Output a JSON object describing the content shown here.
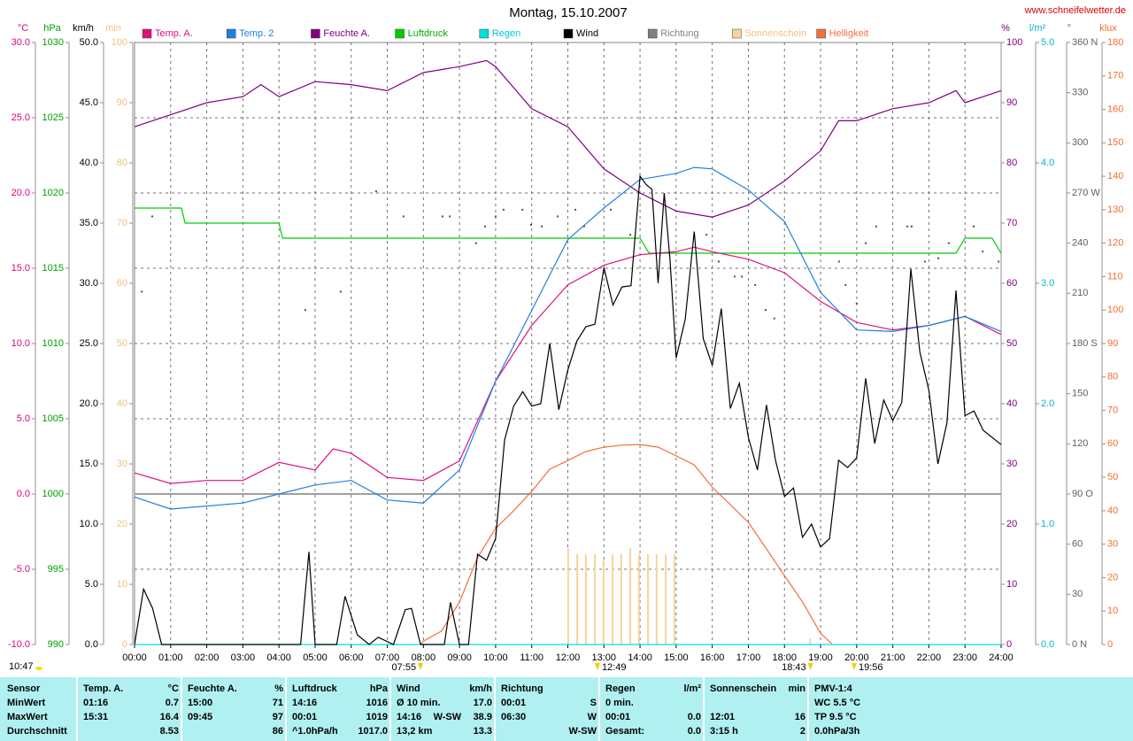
{
  "chart_data": [
    {
      "type": "line",
      "title": "Montag, 15.10.2007",
      "source": "www.schneifelwetter.de",
      "timestamp": "10:47",
      "ylabel": "°C",
      "grid": true,
      "xlim": [
        0,
        24
      ],
      "xticks": [
        {
          "value": 0,
          "label": "00:00"
        },
        {
          "value": 1,
          "label": "01:00"
        },
        {
          "value": 2,
          "label": "02:00"
        },
        {
          "value": 3,
          "label": "03:00"
        },
        {
          "value": 4,
          "label": "04:00"
        },
        {
          "value": 5,
          "label": "05:00"
        },
        {
          "value": 6,
          "label": "06:00"
        },
        {
          "value": 7,
          "label": "07:00"
        },
        {
          "value": 8,
          "label": "08:00"
        },
        {
          "value": 9,
          "label": "09:00"
        },
        {
          "value": 10,
          "label": "10:00"
        },
        {
          "value": 11,
          "label": "11:00"
        },
        {
          "value": 12,
          "label": "12:00"
        },
        {
          "value": 13,
          "label": "13:00"
        },
        {
          "value": 14,
          "label": "14:00"
        },
        {
          "value": 15,
          "label": "15:00"
        },
        {
          "value": 16,
          "label": "16:00"
        },
        {
          "value": 17,
          "label": "17:00"
        },
        {
          "value": 18,
          "label": "18:00"
        },
        {
          "value": 19,
          "label": "19:00"
        },
        {
          "value": 20,
          "label": "20:00"
        },
        {
          "value": 21,
          "label": "21:00"
        },
        {
          "value": 22,
          "label": "22:00"
        },
        {
          "value": 23,
          "label": "23:00"
        },
        {
          "value": 24,
          "label": "24:00"
        }
      ],
      "ylim": [
        -10,
        30
      ],
      "yticks": [
        {
          "value": -10,
          "label": "-10.0"
        },
        {
          "value": -5,
          "label": "-5.0"
        },
        {
          "value": 0,
          "label": "0.0"
        },
        {
          "value": 5,
          "label": "5.0"
        },
        {
          "value": 10,
          "label": "10.0"
        },
        {
          "value": 15,
          "label": "15.0"
        },
        {
          "value": 20,
          "label": "20.0"
        },
        {
          "value": 25,
          "label": "25.0"
        },
        {
          "value": 30,
          "label": "30.0"
        }
      ],
      "annotations": [
        {
          "text": "07:55",
          "x": 7.92
        },
        {
          "text": "12:49",
          "x": 12.82
        },
        {
          "text": "18:43",
          "x": 18.72
        },
        {
          "text": "19:56",
          "x": 19.93
        }
      ],
      "x": [
        0,
        1,
        2,
        3,
        4,
        5,
        5.5,
        6,
        7,
        8,
        9,
        10,
        11,
        12,
        13,
        14,
        15,
        15.5,
        16,
        17,
        18,
        19,
        20,
        21,
        22,
        23,
        24
      ],
      "series": [
        {
          "name": "Temp. A.",
          "color": "#e0107f",
          "values": [
            1.4,
            0.7,
            0.9,
            0.9,
            2.1,
            1.6,
            3.0,
            2.7,
            1.1,
            0.9,
            2.2,
            7.5,
            11.2,
            13.9,
            15.2,
            15.9,
            16.1,
            16.4,
            16.1,
            15.6,
            14.7,
            12.8,
            11.4,
            10.9,
            11.2,
            11.8,
            10.6
          ]
        },
        {
          "name": "Temp. 2",
          "color": "#2080e0",
          "x": [
            0,
            1,
            2,
            3,
            4,
            5,
            6,
            7,
            8,
            9,
            10,
            11,
            12,
            13,
            14,
            15,
            15.5,
            16,
            17,
            18,
            19,
            20,
            21,
            22,
            23,
            24
          ],
          "values": [
            -0.2,
            -1.0,
            -0.8,
            -0.6,
            0.0,
            0.6,
            0.9,
            -0.4,
            -0.6,
            1.6,
            7.5,
            12.2,
            16.9,
            19.0,
            20.9,
            21.3,
            21.7,
            21.6,
            20.2,
            18.1,
            13.4,
            10.9,
            10.8,
            11.2,
            11.8,
            10.8
          ]
        }
      ]
    },
    {
      "type": "line",
      "ylabel": "%",
      "xlim": [
        0,
        24
      ],
      "ylim": [
        0,
        100
      ],
      "yticks": [
        0,
        10,
        20,
        30,
        40,
        50,
        60,
        70,
        80,
        90,
        100
      ],
      "x": [
        0,
        1,
        2,
        3,
        3.5,
        4,
        5,
        6,
        7,
        8,
        9,
        9.75,
        10,
        11,
        12,
        13,
        14,
        15,
        16,
        17,
        18,
        19,
        19.5,
        20,
        21,
        22,
        22.75,
        23,
        24
      ],
      "series": [
        {
          "name": "Feuchte A.",
          "color": "#800080",
          "values": [
            86,
            88,
            90,
            91,
            93,
            91,
            93.5,
            93,
            92,
            95,
            96,
            97,
            96,
            89,
            86,
            79,
            75,
            72,
            71,
            73,
            77,
            82,
            87,
            87,
            89,
            90,
            92,
            90,
            92
          ]
        }
      ]
    },
    {
      "type": "line",
      "ylabel": "hPa",
      "xlim": [
        0,
        24
      ],
      "ylim": [
        990,
        1030
      ],
      "yticks": [
        990,
        995,
        1000,
        1005,
        1010,
        1015,
        1020,
        1025,
        1030
      ],
      "x": [
        0,
        1.3,
        1.4,
        4.0,
        4.1,
        14.0,
        14.25,
        22.75,
        23.0,
        23.75,
        24
      ],
      "series": [
        {
          "name": "Luftdruck",
          "color": "#00cc00",
          "values": [
            1019,
            1019,
            1018,
            1018,
            1017,
            1017,
            1016,
            1016,
            1017,
            1017,
            1016
          ]
        }
      ]
    },
    {
      "type": "line",
      "ylabel": "l/m²",
      "xlim": [
        0,
        24
      ],
      "ylim": [
        0,
        5
      ],
      "yticks": [
        {
          "value": 0,
          "label": "0.0"
        },
        {
          "value": 1,
          "label": "1.0"
        },
        {
          "value": 2,
          "label": "2.0"
        },
        {
          "value": 3,
          "label": "3.0"
        },
        {
          "value": 4,
          "label": "4.0"
        },
        {
          "value": 5,
          "label": "5.0"
        }
      ],
      "x": [
        0,
        24
      ],
      "series": [
        {
          "name": "Regen",
          "color": "#00e0e0",
          "values": [
            0,
            0
          ]
        }
      ]
    },
    {
      "type": "line",
      "ylabel": "km/h",
      "xlim": [
        0,
        24
      ],
      "ylim": [
        0,
        50
      ],
      "yticks": [
        {
          "value": 0,
          "label": "0.0"
        },
        {
          "value": 5,
          "label": "5.0"
        },
        {
          "value": 10,
          "label": "10.0"
        },
        {
          "value": 15,
          "label": "15.0"
        },
        {
          "value": 20,
          "label": "20.0"
        },
        {
          "value": 25,
          "label": "25.0"
        },
        {
          "value": 30,
          "label": "30.0"
        },
        {
          "value": 35,
          "label": "35.0"
        },
        {
          "value": 40,
          "label": "40.0"
        },
        {
          "value": 45,
          "label": "45.0"
        },
        {
          "value": 50,
          "label": "50.0"
        }
      ],
      "x": [
        0,
        0.25,
        0.5,
        0.75,
        4.6,
        4.83,
        5.0,
        5.6,
        5.83,
        6.17,
        6.5,
        6.75,
        7.17,
        7.5,
        7.67,
        7.92,
        8.25,
        8.58,
        8.75,
        9.0,
        9.25,
        9.5,
        9.75,
        10.0,
        10.25,
        10.5,
        10.75,
        11.0,
        11.25,
        11.5,
        11.75,
        12.0,
        12.25,
        12.5,
        12.75,
        13.0,
        13.25,
        13.5,
        13.75,
        14.0,
        14.17,
        14.33,
        14.5,
        14.67,
        14.83,
        15.0,
        15.25,
        15.5,
        15.75,
        16.0,
        16.25,
        16.5,
        16.75,
        17.0,
        17.25,
        17.5,
        17.75,
        18.0,
        18.25,
        18.5,
        18.75,
        19.0,
        19.25,
        19.5,
        19.75,
        20.0,
        20.25,
        20.5,
        20.75,
        21.0,
        21.25,
        21.5,
        21.75,
        22.0,
        22.25,
        22.5,
        22.75,
        23.0,
        23.25,
        23.5,
        24.0
      ],
      "series": [
        {
          "name": "Wind",
          "color": "#000000",
          "values": [
            0,
            4.6,
            3.0,
            0,
            0,
            7.7,
            0,
            0,
            4.0,
            0.8,
            0,
            0.6,
            0,
            2.9,
            3.0,
            0,
            0,
            0,
            3.5,
            0,
            0,
            7.5,
            7.0,
            8.8,
            17.0,
            19.8,
            21.0,
            19.8,
            20.0,
            25.0,
            19.5,
            22.8,
            25.2,
            26.4,
            26.6,
            31.3,
            28.2,
            29.7,
            29.8,
            38.9,
            38.2,
            37.8,
            30.0,
            37.5,
            32.0,
            23.8,
            27.0,
            34.3,
            25.4,
            23.2,
            27.9,
            19.6,
            21.7,
            17.2,
            14.5,
            19.9,
            15.3,
            12.3,
            13.0,
            8.9,
            10.0,
            8.1,
            8.8,
            15.3,
            14.7,
            15.5,
            22.1,
            16.7,
            20.3,
            18.6,
            20.1,
            31.2,
            24.3,
            21.1,
            15.0,
            18.4,
            29.4,
            19.0,
            19.4,
            17.8,
            16.6
          ]
        }
      ]
    },
    {
      "type": "scatter",
      "ylabel": "°",
      "xlim": [
        0,
        24
      ],
      "ylim": [
        0,
        360
      ],
      "yticks": [
        {
          "value": 0,
          "label": "0 N"
        },
        30,
        60,
        {
          "value": 90,
          "label": "90 O"
        },
        120,
        150,
        {
          "value": 180,
          "label": "180 S"
        },
        210,
        240,
        {
          "value": 270,
          "label": "270 W"
        },
        300,
        330,
        {
          "value": 360,
          "label": "360 N"
        }
      ],
      "x": [
        0.2,
        0.49,
        4.73,
        5.71,
        6.69,
        7.45,
        8.53,
        8.73,
        9.46,
        9.71,
        10.0,
        10.22,
        10.74,
        10.98,
        11.28,
        11.72,
        12.21,
        12.45,
        13.19,
        13.73,
        15.84,
        16.18,
        16.62,
        16.82,
        17.19,
        17.48,
        17.72,
        19.51,
        19.69,
        20.0,
        20.25,
        20.54,
        21.4,
        21.52,
        21.89,
        22.26,
        22.55,
        23.24,
        23.49,
        23.93
      ],
      "series": [
        {
          "name": "Richtung",
          "color": "#808080",
          "values": [
            211,
            256,
            200,
            211,
            271,
            256,
            256,
            256,
            240,
            250,
            256,
            260,
            260,
            251,
            250,
            256,
            260,
            250,
            260,
            245,
            245,
            229,
            220,
            220,
            215,
            200,
            195,
            229,
            215,
            204,
            240,
            250,
            250,
            250,
            229,
            231,
            240,
            250,
            235,
            229
          ]
        }
      ]
    },
    {
      "type": "bar",
      "ylabel": "min",
      "xlim": [
        0,
        24
      ],
      "ylim": [
        0,
        100
      ],
      "yticks": [
        0,
        10,
        20,
        30,
        40,
        50,
        60,
        70,
        80,
        90,
        100
      ],
      "x": [
        12.01,
        12.26,
        12.5,
        12.75,
        12.99,
        13.24,
        13.48,
        13.73,
        13.97,
        14.22,
        14.46,
        14.71,
        14.95,
        18.71
      ],
      "series": [
        {
          "name": "Sonnenschein",
          "color": "#f8d49a",
          "values": [
            16,
            15,
            15,
            15,
            14,
            15,
            15,
            16,
            15,
            15,
            15,
            15,
            15,
            1
          ]
        }
      ]
    },
    {
      "type": "line",
      "ylabel": "klux",
      "xlim": [
        0,
        24
      ],
      "ylim": [
        0,
        180
      ],
      "yticks": [
        0,
        10,
        20,
        30,
        40,
        50,
        60,
        70,
        80,
        90,
        100,
        110,
        120,
        130,
        140,
        150,
        160,
        170,
        180
      ],
      "x": [
        7.92,
        8.0,
        8.5,
        9.0,
        9.5,
        10.0,
        10.5,
        11.0,
        11.5,
        12.0,
        12.5,
        13.0,
        13.5,
        14.0,
        14.5,
        15.0,
        15.5,
        16.0,
        16.5,
        17.0,
        17.5,
        18.0,
        18.5,
        19.0,
        19.33
      ],
      "series": [
        {
          "name": "Helligkeit",
          "color": "#f07040",
          "values": [
            0,
            1,
            4,
            12.7,
            26,
            34.7,
            40,
            45.8,
            52.4,
            55,
            57.7,
            59,
            59.6,
            59.8,
            59,
            56.4,
            53.7,
            47,
            41.8,
            36.5,
            28.6,
            20.6,
            12.7,
            3.4,
            0
          ]
        }
      ]
    }
  ],
  "table": {
    "header": [
      [
        "Sensor"
      ],
      [
        "Temp. A.",
        "°C"
      ],
      [
        "Feuchte A.",
        "%"
      ],
      [
        "Luftdruck",
        "hPa"
      ],
      [
        "Wind",
        "km/h"
      ],
      [
        "Richtung"
      ],
      [
        "Regen",
        "l/m²"
      ],
      [
        "Sonnenschein",
        "min"
      ],
      [
        "PMV-1:4"
      ]
    ],
    "rows": [
      [
        [
          "MinWert"
        ],
        [
          "01:16",
          "0.7"
        ],
        [
          "15:00",
          "71"
        ],
        [
          "14:16",
          "1016"
        ],
        [
          "Ø 10 min.",
          "17.0"
        ],
        [
          "00:01",
          "S"
        ],
        [
          "0 min."
        ],
        [],
        [
          "WC 5.5 °C"
        ]
      ],
      [
        [
          "MaxWert"
        ],
        [
          "15:31",
          "16.4"
        ],
        [
          "09:45",
          "97"
        ],
        [
          "00:01",
          "1019"
        ],
        [
          "14:16",
          "W-SW",
          "38.9"
        ],
        [
          "06:30",
          "W"
        ],
        [
          "00:01",
          "0.0"
        ],
        [
          "12:01",
          "16"
        ],
        [
          "TP 9.5 °C"
        ]
      ],
      [
        [
          "Durchschnitt"
        ],
        [
          "8.53"
        ],
        [
          "86"
        ],
        [
          "^1.0hPa/h",
          "1017.0"
        ],
        [
          "13,2 km",
          "13.3"
        ],
        [
          "W-SW"
        ],
        [
          "Gesamt:",
          "0.0"
        ],
        [
          "3:15 h",
          "2"
        ],
        [
          "0.0hPa/3h"
        ]
      ]
    ]
  }
}
